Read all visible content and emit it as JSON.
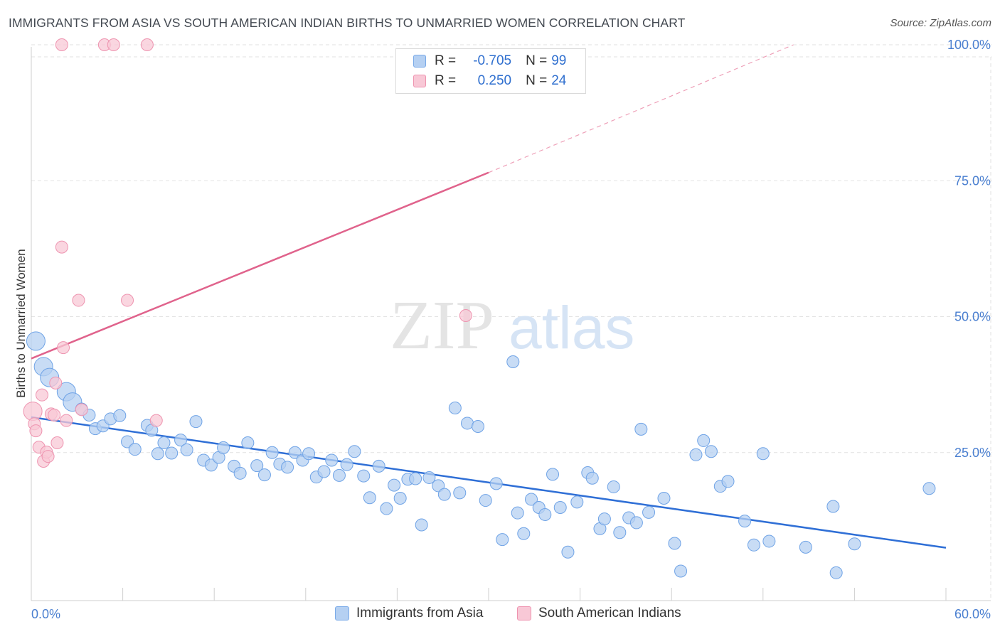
{
  "title": "IMMIGRANTS FROM ASIA VS SOUTH AMERICAN INDIAN BIRTHS TO UNMARRIED WOMEN CORRELATION CHART",
  "source": "Source: ZipAtlas.com",
  "watermark": {
    "zip": "ZIP",
    "atlas": "atlas"
  },
  "legend": {
    "series": [
      {
        "r_label": "R =",
        "r_value": "-0.705",
        "n_label": "N =",
        "n_value": "99",
        "color": "#a8c8f0",
        "border": "#7aaae8"
      },
      {
        "r_label": "R =",
        "r_value": "0.250",
        "n_label": "N =",
        "n_value": "24",
        "color": "#f8c0d0",
        "border": "#ee94b0"
      }
    ]
  },
  "chart_data": {
    "type": "scatter",
    "ylabel": "Births to Unmarried Women",
    "xlim": [
      0,
      60
    ],
    "ylim": [
      0,
      100
    ],
    "x_tick_labels": [
      "0.0%",
      "60.0%"
    ],
    "y_ticks": [
      {
        "value": 100,
        "label": "100.0%"
      },
      {
        "value": 75,
        "label": "75.0%"
      },
      {
        "value": 50,
        "label": "50.0%"
      },
      {
        "value": 25,
        "label": "25.0%"
      }
    ],
    "grid": true,
    "legend_position": "top-center",
    "series": [
      {
        "name": "Immigrants from Asia",
        "color": "#6fa3e6",
        "fill": "#b5d0f2",
        "trend": {
          "x0": 0,
          "y0": 31.5,
          "x1": 60,
          "y1": 7.5
        },
        "points": [
          [
            0.3,
            45.5,
            2
          ],
          [
            0.8,
            40.8,
            2
          ],
          [
            1.2,
            38.8,
            2
          ],
          [
            2.3,
            36.2,
            2
          ],
          [
            2.7,
            34.3,
            2
          ],
          [
            3.3,
            33.0,
            1
          ],
          [
            3.8,
            31.9,
            1
          ],
          [
            4.2,
            29.4,
            1
          ],
          [
            4.7,
            29.9,
            1
          ],
          [
            5.2,
            31.2,
            1
          ],
          [
            5.8,
            31.8,
            1
          ],
          [
            6.3,
            27.0,
            1
          ],
          [
            6.8,
            25.6,
            1
          ],
          [
            7.6,
            30.0,
            1
          ],
          [
            7.9,
            29.1,
            1
          ],
          [
            8.3,
            24.8,
            1
          ],
          [
            8.7,
            26.8,
            1
          ],
          [
            9.2,
            24.9,
            1
          ],
          [
            9.8,
            27.3,
            1
          ],
          [
            10.2,
            25.5,
            1
          ],
          [
            10.8,
            30.7,
            1
          ],
          [
            11.3,
            23.6,
            1
          ],
          [
            11.8,
            22.7,
            1
          ],
          [
            12.3,
            24.1,
            1
          ],
          [
            12.6,
            25.9,
            1
          ],
          [
            13.3,
            22.5,
            1
          ],
          [
            13.7,
            21.2,
            1
          ],
          [
            14.2,
            26.8,
            1
          ],
          [
            14.8,
            22.6,
            1
          ],
          [
            15.3,
            20.9,
            1
          ],
          [
            15.8,
            25.0,
            1
          ],
          [
            16.3,
            22.9,
            1
          ],
          [
            16.8,
            22.3,
            1
          ],
          [
            17.3,
            25.0,
            1
          ],
          [
            17.8,
            23.6,
            1
          ],
          [
            18.2,
            24.8,
            1
          ],
          [
            18.7,
            20.5,
            1
          ],
          [
            19.2,
            21.5,
            1
          ],
          [
            19.7,
            23.6,
            1
          ],
          [
            20.2,
            20.8,
            1
          ],
          [
            20.7,
            22.8,
            1
          ],
          [
            21.2,
            25.2,
            1
          ],
          [
            21.8,
            20.7,
            1
          ],
          [
            22.2,
            16.7,
            1
          ],
          [
            22.8,
            22.5,
            1
          ],
          [
            23.3,
            14.7,
            1
          ],
          [
            23.8,
            19.0,
            1
          ],
          [
            24.2,
            16.6,
            1
          ],
          [
            24.7,
            20.1,
            1
          ],
          [
            25.2,
            20.2,
            1
          ],
          [
            25.6,
            11.7,
            1
          ],
          [
            26.1,
            20.4,
            1
          ],
          [
            26.7,
            18.9,
            1
          ],
          [
            27.1,
            17.3,
            1
          ],
          [
            27.8,
            33.2,
            1
          ],
          [
            28.1,
            17.6,
            1
          ],
          [
            28.6,
            30.4,
            1
          ],
          [
            29.3,
            29.8,
            1
          ],
          [
            29.8,
            16.2,
            1
          ],
          [
            30.5,
            19.3,
            1
          ],
          [
            30.9,
            9.0,
            1
          ],
          [
            31.6,
            41.7,
            1
          ],
          [
            31.9,
            13.9,
            1
          ],
          [
            32.3,
            10.1,
            1
          ],
          [
            32.8,
            16.4,
            1
          ],
          [
            33.3,
            14.9,
            1
          ],
          [
            33.7,
            13.6,
            1
          ],
          [
            34.2,
            21.0,
            1
          ],
          [
            34.7,
            14.9,
            1
          ],
          [
            35.2,
            6.7,
            1
          ],
          [
            35.8,
            15.9,
            1
          ],
          [
            36.5,
            21.3,
            1
          ],
          [
            36.8,
            20.3,
            1
          ],
          [
            37.3,
            11.0,
            1
          ],
          [
            37.6,
            12.8,
            1
          ],
          [
            38.2,
            18.7,
            1
          ],
          [
            38.6,
            10.3,
            1
          ],
          [
            39.2,
            13.0,
            1
          ],
          [
            39.7,
            12.1,
            1
          ],
          [
            40.0,
            29.3,
            1
          ],
          [
            40.5,
            14.0,
            1
          ],
          [
            41.5,
            16.6,
            1
          ],
          [
            42.2,
            8.3,
            1
          ],
          [
            42.6,
            3.2,
            1
          ],
          [
            43.6,
            24.6,
            1
          ],
          [
            44.1,
            27.2,
            1
          ],
          [
            44.6,
            25.2,
            1
          ],
          [
            45.2,
            18.8,
            1
          ],
          [
            45.7,
            19.7,
            1
          ],
          [
            46.8,
            12.4,
            1
          ],
          [
            47.4,
            8.0,
            1
          ],
          [
            48.0,
            24.8,
            1
          ],
          [
            48.4,
            8.7,
            1
          ],
          [
            50.8,
            7.6,
            1
          ],
          [
            52.6,
            15.1,
            1
          ],
          [
            52.8,
            2.9,
            1
          ],
          [
            54.0,
            8.2,
            1
          ],
          [
            58.9,
            18.4,
            1
          ]
        ]
      },
      {
        "name": "South American Indians",
        "color": "#ee94b0",
        "fill": "#f8c8d6",
        "trend": {
          "x0": 0,
          "y0": 42.3,
          "x1": 30,
          "y1": 76.5
        },
        "trend_extension": {
          "x0": 30,
          "y0": 76.5,
          "x1": 50,
          "y1": 100
        },
        "points": [
          [
            0.1,
            32.6,
            2
          ],
          [
            0.2,
            30.3,
            1
          ],
          [
            0.3,
            29.0,
            1
          ],
          [
            0.5,
            26.0,
            1
          ],
          [
            0.7,
            35.6,
            1
          ],
          [
            0.8,
            23.4,
            1
          ],
          [
            1.0,
            25.1,
            1
          ],
          [
            1.1,
            24.3,
            1
          ],
          [
            1.3,
            32.1,
            1
          ],
          [
            1.5,
            31.9,
            1
          ],
          [
            1.6,
            37.8,
            1
          ],
          [
            1.7,
            26.8,
            1
          ],
          [
            2.0,
            62.8,
            1
          ],
          [
            2.0,
            100.0,
            1
          ],
          [
            2.1,
            44.3,
            1
          ],
          [
            2.3,
            30.9,
            1
          ],
          [
            3.1,
            53.0,
            1
          ],
          [
            3.3,
            32.9,
            1
          ],
          [
            4.8,
            100.0,
            1
          ],
          [
            5.4,
            100.0,
            1
          ],
          [
            6.3,
            53.0,
            1
          ],
          [
            7.6,
            100.0,
            1
          ],
          [
            8.2,
            30.9,
            1
          ],
          [
            28.5,
            50.2,
            1
          ]
        ]
      }
    ]
  },
  "bottom_legend": [
    "Immigrants from Asia",
    "South American Indians"
  ]
}
